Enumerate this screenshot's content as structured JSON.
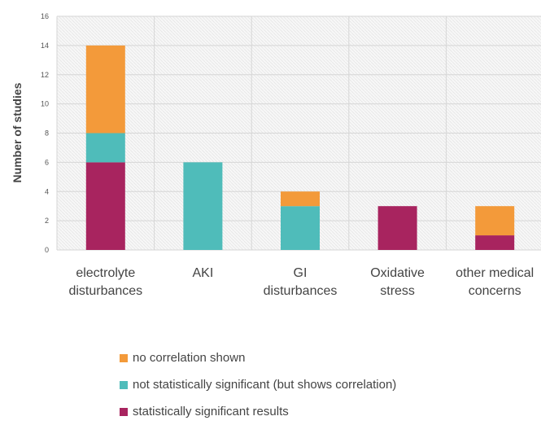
{
  "chart_data": {
    "type": "bar",
    "stacked": true,
    "ylabel": "Number of studies",
    "xlabel": "",
    "ylim": [
      0,
      16
    ],
    "yticks": [
      0,
      2,
      4,
      6,
      8,
      10,
      12,
      14,
      16
    ],
    "grid": true,
    "legend_position": "bottom",
    "categories": [
      [
        "electrolyte",
        "disturbances"
      ],
      [
        "AKI"
      ],
      [
        "GI",
        "disturbances"
      ],
      [
        "Oxidative",
        "stress"
      ],
      [
        "other medical",
        "concerns"
      ]
    ],
    "series": [
      {
        "name": "statistically significant results",
        "color": "#A8245F",
        "values": [
          6,
          0,
          0,
          3,
          1
        ]
      },
      {
        "name": "not statistically significant (but shows correlation)",
        "color": "#4FBCBA",
        "values": [
          2,
          6,
          3,
          0,
          0
        ]
      },
      {
        "name": "no correlation shown",
        "color": "#F39A3A",
        "values": [
          6,
          0,
          1,
          0,
          2
        ]
      }
    ],
    "legend_order": [
      2,
      1,
      0
    ]
  }
}
